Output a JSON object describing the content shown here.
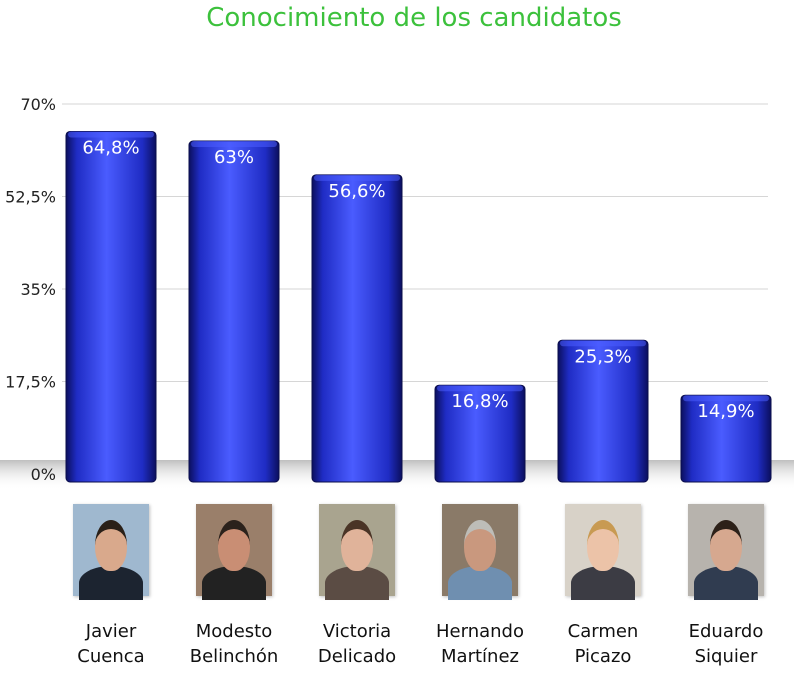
{
  "colors": {
    "title": "#3cc13c",
    "bar_dark": "#0b0f5e",
    "bar_mid": "#1f2cc4",
    "bar_light": "#4a5cff",
    "bar_label": "#ffffff",
    "grid": "#d6d6d6",
    "axis_text": "#222222"
  },
  "chart_data": {
    "type": "bar",
    "title": "Conocimiento de los candidatos",
    "categories": [
      "Javier Cuenca",
      "Modesto Belinchón",
      "Victoria Delicado",
      "Hernando Martínez",
      "Carmen Picazo",
      "Eduardo Siquier"
    ],
    "values": [
      64.8,
      63,
      56.6,
      16.8,
      25.3,
      14.9
    ],
    "value_labels": [
      "64,8%",
      "63%",
      "56,6%",
      "16,8%",
      "25,3%",
      "14,9%"
    ],
    "ylim": [
      0,
      70
    ],
    "yticks": [
      0,
      17.5,
      35,
      52.5,
      70
    ],
    "ytick_labels": [
      "0%",
      "17,5%",
      "35%",
      "52,5%",
      "70%"
    ],
    "xlabel": "",
    "ylabel": "",
    "grid": true,
    "legend": "none"
  },
  "candidates": [
    {
      "first": "Javier",
      "last": "Cuenca",
      "photo": "photo-of-javier-cuenca",
      "bg": "#9fb8cf",
      "hair": "#2a2018",
      "skin": "#d9a98c",
      "shirt": "#1c2430"
    },
    {
      "first": "Modesto",
      "last": "Belinchón",
      "photo": "photo-of-modesto-belinchon",
      "bg": "#9a7f6a",
      "hair": "#2b221c",
      "skin": "#c98e74",
      "shirt": "#222222"
    },
    {
      "first": "Victoria",
      "last": "Delicado",
      "photo": "photo-of-victoria-delicado",
      "bg": "#a9a48f",
      "hair": "#4a3426",
      "skin": "#e0b39a",
      "shirt": "#5b4c44"
    },
    {
      "first": "Hernando",
      "last": "Martínez",
      "photo": "photo-of-hernando-martinez",
      "bg": "#8a7a68",
      "hair": "#bdbdb8",
      "skin": "#c9987e",
      "shirt": "#6f8fb0"
    },
    {
      "first": "Carmen",
      "last": "Picazo",
      "photo": "photo-of-carmen-picazo",
      "bg": "#d8d2c8",
      "hair": "#c89a52",
      "skin": "#ecc3a8",
      "shirt": "#3c3c44"
    },
    {
      "first": "Eduardo",
      "last": "Siquier",
      "photo": "photo-of-eduardo-siquier",
      "bg": "#b7b3ad",
      "hair": "#2d2119",
      "skin": "#d6a88f",
      "shirt": "#303c50"
    }
  ]
}
